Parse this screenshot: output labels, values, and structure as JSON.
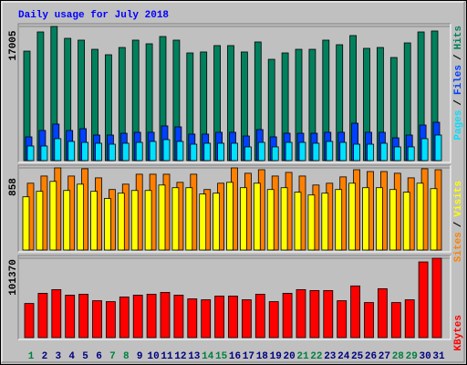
{
  "chart_data": [
    {
      "type": "bar",
      "title": "Daily usage for July 2018",
      "ylim": [
        0,
        17005
      ],
      "yticks": [
        17005
      ],
      "legend_separator": "/",
      "series": [
        {
          "name": "Pages",
          "color": "#00e0ff",
          "values": [
            1850,
            1850,
            2780,
            2430,
            2310,
            2200,
            2080,
            2200,
            2310,
            2430,
            2660,
            2430,
            2080,
            2200,
            2200,
            2200,
            1740,
            2310,
            1740,
            2310,
            2310,
            2200,
            2430,
            2310,
            2080,
            2080,
            2200,
            1740,
            1740,
            2780,
            3240
          ]
        },
        {
          "name": "Files",
          "color": "#0040ff",
          "values": [
            3010,
            3820,
            4630,
            3820,
            4050,
            3240,
            3240,
            3470,
            3590,
            3590,
            4400,
            4280,
            3360,
            3360,
            3590,
            3590,
            3120,
            3930,
            3010,
            3470,
            3470,
            3470,
            3590,
            3590,
            4740,
            3590,
            3590,
            2890,
            3240,
            4510,
            4860
          ]
        },
        {
          "name": "Hits",
          "color": "#00805c",
          "values": [
            13880,
            16310,
            17005,
            15500,
            15270,
            14110,
            13420,
            14340,
            15270,
            14810,
            15730,
            15270,
            13650,
            13770,
            14580,
            14580,
            13770,
            15040,
            12840,
            13650,
            14110,
            14110,
            15270,
            14690,
            15850,
            14230,
            14340,
            13070,
            14920,
            16310,
            16430
          ]
        }
      ]
    },
    {
      "type": "bar",
      "ylim": [
        0,
        858
      ],
      "yticks": [
        858
      ],
      "legend_separator": "/",
      "series": [
        {
          "name": "Sites",
          "color": "#ff8000",
          "values": [
            698,
            773,
            858,
            773,
            849,
            754,
            632,
            688,
            792,
            792,
            792,
            707,
            792,
            632,
            698,
            858,
            802,
            839,
            773,
            811,
            773,
            679,
            698,
            764,
            839,
            820,
            820,
            802,
            754,
            849,
            839
          ]
        },
        {
          "name": "Visits",
          "color": "#ffff00",
          "values": [
            556,
            613,
            717,
            622,
            688,
            613,
            538,
            594,
            622,
            622,
            679,
            651,
            651,
            585,
            594,
            707,
            651,
            698,
            632,
            651,
            604,
            575,
            594,
            632,
            698,
            651,
            651,
            632,
            604,
            698,
            641
          ]
        }
      ]
    },
    {
      "type": "bar",
      "ylim": [
        0,
        101370
      ],
      "yticks": [
        101370
      ],
      "categories": [
        "1",
        "2",
        "3",
        "4",
        "5",
        "6",
        "7",
        "8",
        "9",
        "10",
        "11",
        "12",
        "13",
        "14",
        "15",
        "16",
        "17",
        "18",
        "19",
        "20",
        "21",
        "22",
        "23",
        "24",
        "25",
        "26",
        "27",
        "28",
        "29",
        "30",
        "31"
      ],
      "category_colors": [
        "#008040",
        "#000080",
        "#000080",
        "#000080",
        "#000080",
        "#000080",
        "#008040",
        "#008040",
        "#000080",
        "#000080",
        "#000080",
        "#000080",
        "#000080",
        "#008040",
        "#008040",
        "#000080",
        "#000080",
        "#000080",
        "#000080",
        "#000080",
        "#008040",
        "#008040",
        "#000080",
        "#000080",
        "#000080",
        "#000080",
        "#000080",
        "#008040",
        "#008040",
        "#000080",
        "#000080"
      ],
      "series": [
        {
          "name": "KBytes",
          "color": "#ff0000",
          "values": [
            43620,
            56590,
            61310,
            54230,
            55410,
            47160,
            45980,
            51880,
            54230,
            55410,
            57770,
            54230,
            49520,
            48340,
            53060,
            53060,
            48340,
            55410,
            45980,
            56590,
            61310,
            60130,
            60130,
            47160,
            66020,
            44800,
            62490,
            44800,
            48340,
            96680,
            101370
          ]
        }
      ]
    }
  ]
}
